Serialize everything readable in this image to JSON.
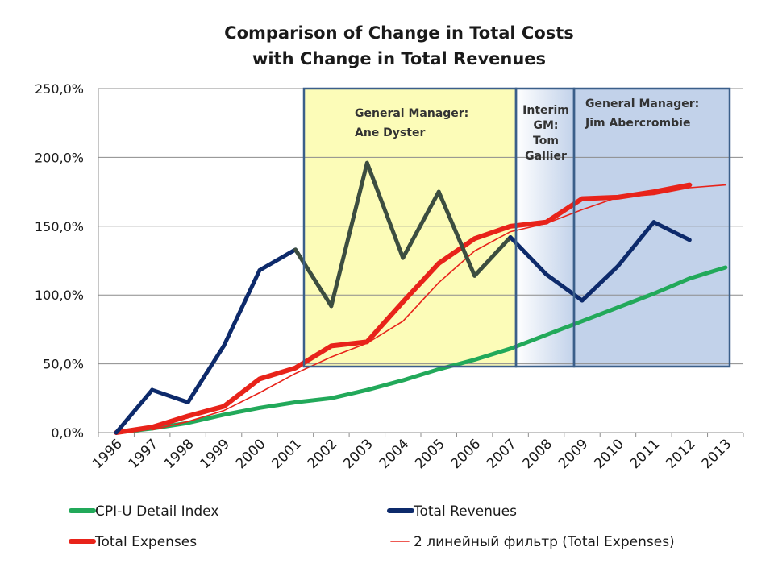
{
  "chart_data": {
    "type": "line",
    "title_lines": [
      "Comparison of Change in Total Costs",
      "with Change in Total Revenues"
    ],
    "y_tick_labels": [
      "0,0%",
      "50,0%",
      "100,0%",
      "150,0%",
      "200,0%",
      "250,0%"
    ],
    "ylim": [
      0,
      250
    ],
    "x_categories": [
      "1996",
      "1997",
      "1998",
      "1999",
      "2000",
      "2001",
      "2002",
      "2003",
      "2004",
      "2005",
      "2006",
      "2007",
      "2008",
      "2009",
      "2010",
      "2011",
      "2012",
      "2013"
    ],
    "grid": "horizontal",
    "legend_position": "bottom",
    "series": [
      {
        "name": "CPI-U Detail Index",
        "color": "#22a95a",
        "x": [
          "1996",
          "1997",
          "1998",
          "1999",
          "2000",
          "2001",
          "2002",
          "2003",
          "2004",
          "2005",
          "2006",
          "2007",
          "2008",
          "2009",
          "2010",
          "2011",
          "2012",
          "2013"
        ],
        "values": [
          0,
          3,
          7,
          13,
          18,
          22,
          25,
          31,
          38,
          46,
          53,
          61,
          71,
          81,
          91,
          101,
          112,
          120
        ]
      },
      {
        "name": "Total Revenues",
        "color": "#0d2a6b",
        "x": [
          "1996",
          "1997",
          "1998",
          "1999",
          "2000",
          "2001",
          "2002",
          "2003",
          "2004",
          "2005",
          "2006",
          "2007",
          "2008",
          "2009",
          "2010",
          "2011",
          "2012"
        ],
        "values": [
          0,
          31,
          22,
          63,
          118,
          133,
          92,
          196,
          127,
          175,
          114,
          142,
          115,
          96,
          121,
          153,
          140
        ]
      },
      {
        "name": "Total Expenses",
        "color": "#e8231a",
        "x": [
          "1996",
          "1997",
          "1998",
          "1999",
          "2000",
          "2001",
          "2002",
          "2003",
          "2004",
          "2005",
          "2006",
          "2007",
          "2008",
          "2009",
          "2010",
          "2011",
          "2012"
        ],
        "values": [
          0,
          4,
          12,
          19,
          39,
          47,
          63,
          66,
          95,
          123,
          141,
          150,
          153,
          170,
          171,
          175,
          180
        ]
      },
      {
        "name": "2 линейный фильтр (Total Expenses)",
        "color": "#e8231a",
        "x": [
          "1997",
          "1998",
          "1999",
          "2000",
          "2001",
          "2002",
          "2003",
          "2004",
          "2005",
          "2006",
          "2007",
          "2008",
          "2009",
          "2010",
          "2011",
          "2012",
          "2013"
        ],
        "values": [
          2,
          8,
          16,
          29,
          43,
          55,
          65,
          81,
          109,
          132,
          146,
          152,
          162,
          171,
          173,
          178,
          180
        ]
      }
    ],
    "annotations": [
      {
        "lines": [
          "General Manager:",
          "Ane Dyster"
        ],
        "color": "#fcfcb8"
      },
      {
        "lines": [
          "Interim",
          "GM:",
          "Tom",
          "Gallier"
        ],
        "color": "#eef2fb"
      },
      {
        "lines": [
          "General Manager:",
          "Jim Abercrombie"
        ],
        "color": "#c2d2ea"
      }
    ]
  }
}
